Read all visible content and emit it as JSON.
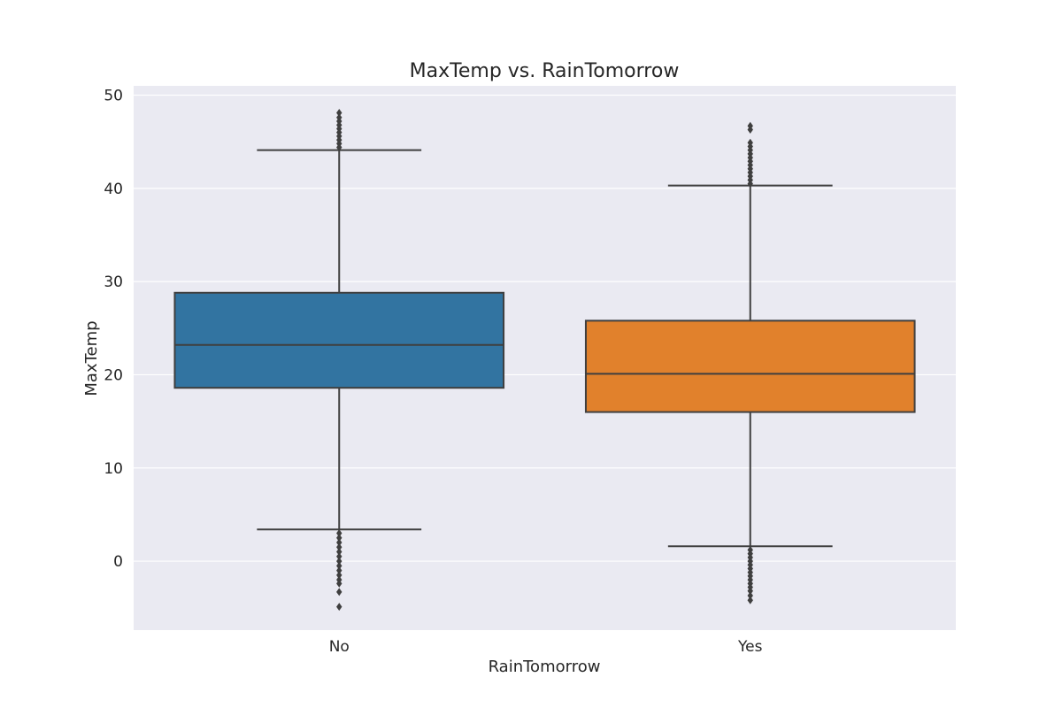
{
  "chart_data": {
    "type": "box",
    "title": "MaxTemp vs. RainTomorrow",
    "xlabel": "RainTomorrow",
    "ylabel": "MaxTemp",
    "ylim": [
      -7.4,
      51
    ],
    "yticks": [
      0,
      10,
      20,
      30,
      40,
      50
    ],
    "grid": true,
    "categories": [
      "No",
      "Yes"
    ],
    "boxes": [
      {
        "category": "No",
        "color": "#3274a1",
        "min": 3.4,
        "q1": 18.6,
        "median": 23.2,
        "q3": 28.8,
        "max": 44.1,
        "outliers": [
          48.1,
          47.6,
          47.2,
          46.8,
          46.4,
          46.0,
          45.6,
          45.2,
          44.8,
          44.4,
          3.0,
          2.5,
          2.0,
          1.5,
          1.0,
          0.5,
          0.0,
          -0.5,
          -1.0,
          -1.5,
          -2.0,
          -2.4,
          -3.3,
          -4.9
        ]
      },
      {
        "category": "Yes",
        "color": "#e1812c",
        "min": 1.6,
        "q1": 16.0,
        "median": 20.1,
        "q3": 25.8,
        "max": 40.3,
        "outliers": [
          46.7,
          46.3,
          44.9,
          44.5,
          44.1,
          43.7,
          43.3,
          42.9,
          42.5,
          42.1,
          41.7,
          41.3,
          40.9,
          40.5,
          1.2,
          0.8,
          0.4,
          0.0,
          -0.4,
          -0.8,
          -1.2,
          -1.6,
          -2.0,
          -2.4,
          -2.8,
          -3.2,
          -3.7,
          -4.2
        ]
      }
    ]
  }
}
